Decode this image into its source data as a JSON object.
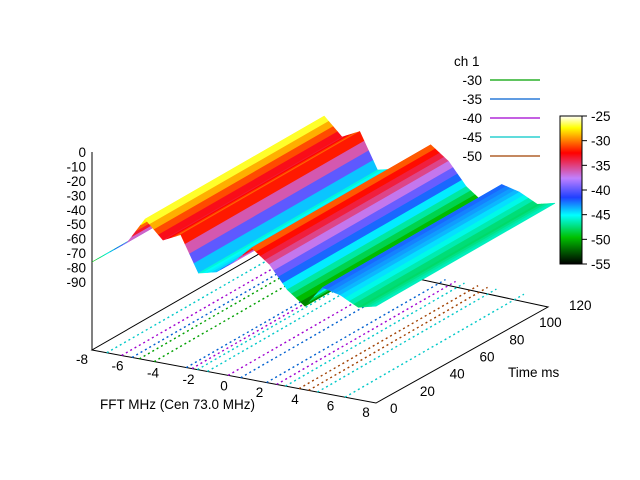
{
  "chart_data": {
    "type": "surface",
    "title": "",
    "xlabel": "FFT MHz (Cen 73.0 MHz)",
    "ylabel": "Time ms",
    "xlim": [
      -8,
      8
    ],
    "ylim": [
      0,
      120
    ],
    "zlim": [
      -90,
      0
    ],
    "x_ticks": [
      -8,
      -6,
      -4,
      -2,
      0,
      2,
      4,
      6,
      8
    ],
    "y_ticks": [
      0,
      20,
      40,
      60,
      80,
      100,
      120
    ],
    "z_ticks": [
      0,
      -10,
      -20,
      -30,
      -40,
      -50,
      -60,
      -70,
      -80,
      -90
    ],
    "z_tick_labels": [
      "0",
      "-10",
      "-20",
      "-30",
      "-40",
      "-50",
      "-60",
      "-70",
      "-80",
      "-90"
    ],
    "legend": {
      "title": "ch 1",
      "position": "top-right",
      "entries": [
        {
          "label": "-30",
          "color": "#00a000"
        },
        {
          "label": "-35",
          "color": "#0060d0"
        },
        {
          "label": "-40",
          "color": "#a000d0"
        },
        {
          "label": "-45",
          "color": "#00c8c8"
        },
        {
          "label": "-50",
          "color": "#a04000"
        }
      ]
    },
    "colorbar": {
      "ticks": [
        "-25",
        "-30",
        "-35",
        "-40",
        "-45",
        "-50",
        "-55"
      ],
      "range": [
        -55,
        -25
      ],
      "stops": [
        "#000000",
        "#00c000",
        "#00ffff",
        "#2040ff",
        "#c080ff",
        "#ff0000",
        "#ffff00",
        "#ffffff"
      ]
    },
    "spectrum": {
      "x": [
        -8.0,
        -7.0,
        -6.0,
        -5.0,
        -4.0,
        -3.0,
        -2.0,
        -1.0,
        0.0,
        1.0,
        2.0,
        3.0,
        4.0,
        5.0,
        6.0,
        7.0,
        8.0
      ],
      "z": [
        -50,
        -44,
        -38,
        -26,
        -34,
        -30,
        -46,
        -44,
        -38,
        -30,
        -36,
        -46,
        -52,
        -42,
        -44,
        -48,
        -46
      ],
      "time_extent_ms": [
        0,
        120
      ]
    }
  }
}
